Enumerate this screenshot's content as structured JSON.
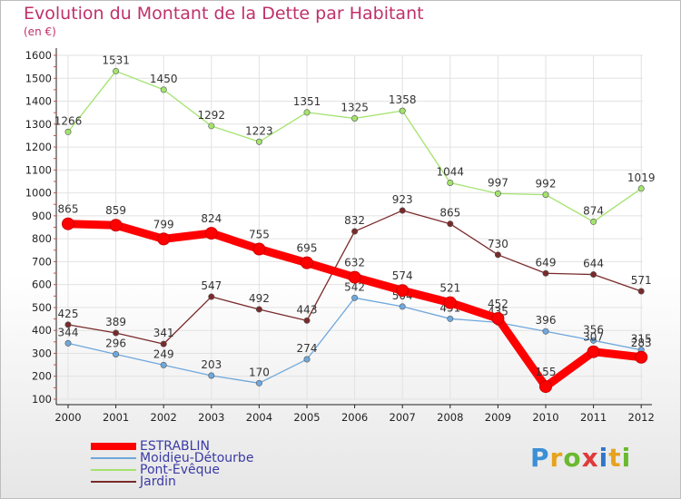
{
  "header": {
    "title": "Evolution du Montant de la Dette par Habitant",
    "unit": "(en €)"
  },
  "logo": {
    "text": "Proxiti",
    "colors": [
      "#3b8fd6",
      "#e7a31f",
      "#6ab92f",
      "#e03a3a",
      "#2f77c9",
      "#e7a31f",
      "#6ab92f"
    ]
  },
  "chart_data": {
    "type": "line",
    "x": [
      "2000",
      "2001",
      "2002",
      "2003",
      "2004",
      "2005",
      "2006",
      "2007",
      "2008",
      "2009",
      "2010",
      "2011",
      "2012"
    ],
    "ylim": [
      100,
      1600
    ],
    "yticks": [
      "100",
      "200",
      "300",
      "400",
      "500",
      "600",
      "700",
      "800",
      "900",
      "1000",
      "1100",
      "1200",
      "1300",
      "1400",
      "1500",
      "1600"
    ],
    "grid": true,
    "legend_position": "bottom-left",
    "series": [
      {
        "name": "ESTRABLIN",
        "color": "#ff0000",
        "values": [
          865,
          859,
          799,
          824,
          755,
          695,
          632,
          574,
          521,
          452,
          155,
          307,
          283
        ]
      },
      {
        "name": "Moidieu-Détourbe",
        "color": "#6fa8dc",
        "values": [
          344,
          296,
          249,
          203,
          170,
          274,
          542,
          504,
          451,
          435,
          396,
          356,
          315
        ]
      },
      {
        "name": "Pont-Évêque",
        "color": "#a3e36d",
        "values": [
          1266,
          1531,
          1450,
          1292,
          1223,
          1351,
          1325,
          1358,
          1044,
          997,
          992,
          874,
          1019
        ]
      },
      {
        "name": "Jardin",
        "color": "#7a2a2a",
        "values": [
          425,
          389,
          341,
          547,
          492,
          443,
          832,
          923,
          865,
          730,
          649,
          644,
          571
        ]
      }
    ]
  }
}
